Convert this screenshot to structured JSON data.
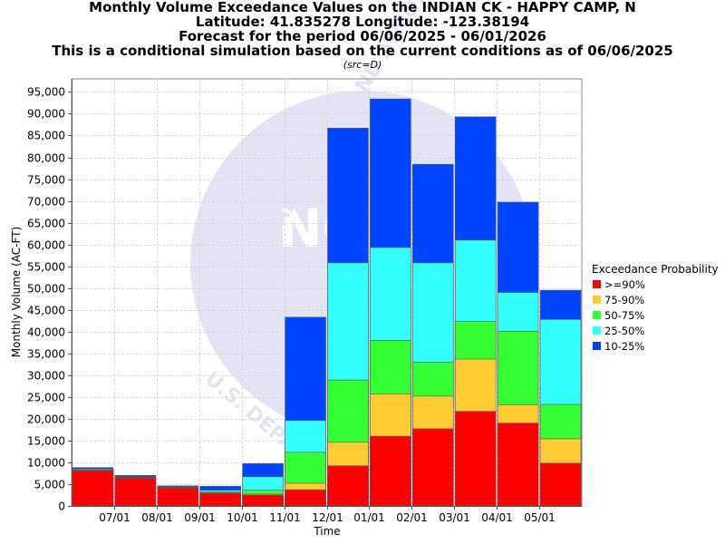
{
  "header": {
    "title_line1": "Monthly Volume Exceedance Values on the INDIAN CK - HAPPY CAMP, N",
    "title_line2": "Latitude: 41.835278 Longitude: -123.38194",
    "title_line3": "Forecast for the period 06/06/2025 - 06/01/2026",
    "title_line4": "This is a conditional simulation based on the current conditions as of 06/06/2025",
    "source_note": "(src=D)"
  },
  "watermark": {
    "text_top": "NATIONAL OCEANIC AND ATMOSPHERIC",
    "text_bottom": "U.S. DEPARTMENT",
    "logo_text": "NOAA"
  },
  "chart_data": {
    "type": "bar",
    "stacking": "overlapping-percentiles",
    "xlabel": "Time",
    "ylabel": "Monthly Volume (AC-FT)",
    "ylim": [
      0,
      98000
    ],
    "yticks": [
      0,
      5000,
      10000,
      15000,
      20000,
      25000,
      30000,
      35000,
      40000,
      45000,
      50000,
      55000,
      60000,
      65000,
      70000,
      75000,
      80000,
      85000,
      90000,
      95000
    ],
    "ytick_labels": [
      "0",
      "5,000",
      "10,000",
      "15,000",
      "20,000",
      "25,000",
      "30,000",
      "35,000",
      "40,000",
      "45,000",
      "50,000",
      "55,000",
      "60,000",
      "65,000",
      "70,000",
      "75,000",
      "80,000",
      "85,000",
      "90,000",
      "95,000"
    ],
    "xtick_labels": [
      "07/01",
      "08/01",
      "09/01",
      "10/01",
      "11/01",
      "12/01",
      "01/01",
      "02/01",
      "03/01",
      "04/01",
      "05/01"
    ],
    "categories": [
      "06/2025",
      "07/2025",
      "08/2025",
      "09/2025",
      "10/2025",
      "11/2025",
      "12/2025",
      "01/2026",
      "02/2026",
      "03/2026",
      "04/2026",
      "05/2026"
    ],
    "grid": true,
    "legend_title": "Exceedance Probability",
    "legend_position": "right",
    "series": [
      {
        "name": "10-25%",
        "color": "#0044ff",
        "values": [
          8800,
          7000,
          4600,
          4500,
          9700,
          43300,
          86700,
          93400,
          78400,
          89300,
          69700,
          49500
        ]
      },
      {
        "name": "25-50%",
        "color": "#33ffff",
        "values": [
          8500,
          6700,
          4400,
          3600,
          6700,
          19600,
          55800,
          59300,
          55800,
          61000,
          49000,
          42800
        ]
      },
      {
        "name": "50-75%",
        "color": "#33ff33",
        "values": [
          8300,
          6600,
          4300,
          3200,
          3600,
          12300,
          28900,
          38000,
          33000,
          42300,
          40100,
          23300
        ]
      },
      {
        "name": "75-90%",
        "color": "#ffcc33",
        "values": [
          8200,
          6500,
          4200,
          3000,
          2700,
          5200,
          14600,
          25700,
          25200,
          33700,
          23200,
          15400
        ]
      },
      {
        "name": ">=90%",
        "color": "#ff0000",
        "values": [
          8100,
          6400,
          4100,
          2900,
          2500,
          3700,
          9200,
          16000,
          17700,
          21700,
          19000,
          9800
        ]
      }
    ],
    "legend_order": [
      ">=90%",
      "75-90%",
      "50-75%",
      "25-50%",
      "10-25%"
    ]
  }
}
